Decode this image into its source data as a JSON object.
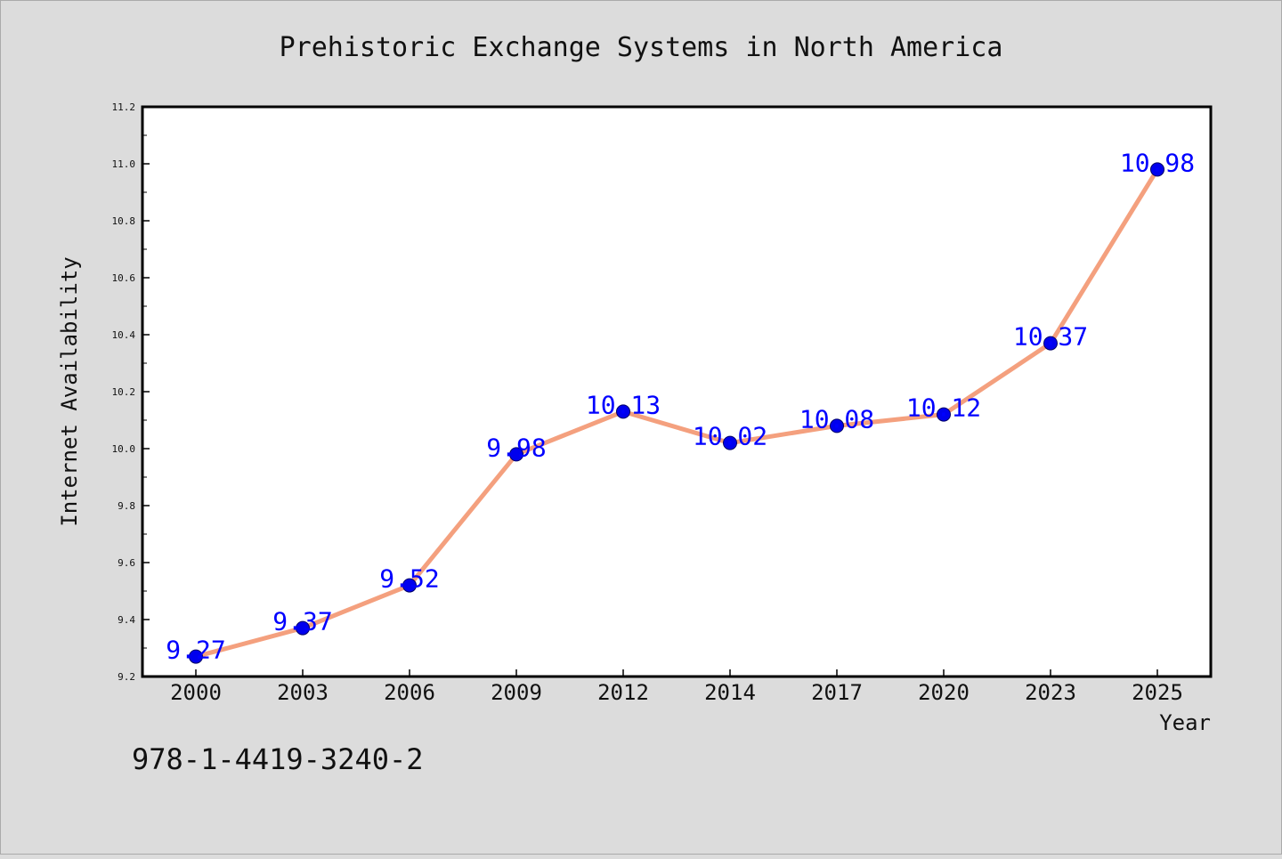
{
  "chart_data": {
    "type": "line",
    "title": "Prehistoric Exchange Systems in North America",
    "xlabel": "Year",
    "ylabel": "Internet Availability",
    "categories": [
      "2000",
      "2003",
      "2006",
      "2009",
      "2012",
      "2014",
      "2017",
      "2020",
      "2023",
      "2025"
    ],
    "series": [
      {
        "values": [
          9.27,
          9.37,
          9.52,
          9.98,
          10.13,
          10.02,
          10.08,
          10.12,
          10.37,
          10.98
        ],
        "data_labels": [
          "9.27",
          "9.37",
          "9.52",
          "9.98",
          "10.13",
          "10.02",
          "10.08",
          "10.12",
          "10.37",
          "10.98"
        ]
      }
    ],
    "ylim": [
      9.2,
      11.2
    ],
    "yticks": [
      "9.2",
      "9.4",
      "9.6",
      "9.8",
      "10.0",
      "10.2",
      "10.4",
      "10.6",
      "10.8",
      "11.0",
      "11.2"
    ],
    "grid": false,
    "legend": "none",
    "colors": {
      "line": "#f4a07e",
      "marker": "#0000ee",
      "data_label": "#0000ff",
      "background": "#dcdcdc",
      "plot_background": "#ffffff"
    }
  },
  "annotation": "978-1-4419-3240-2"
}
